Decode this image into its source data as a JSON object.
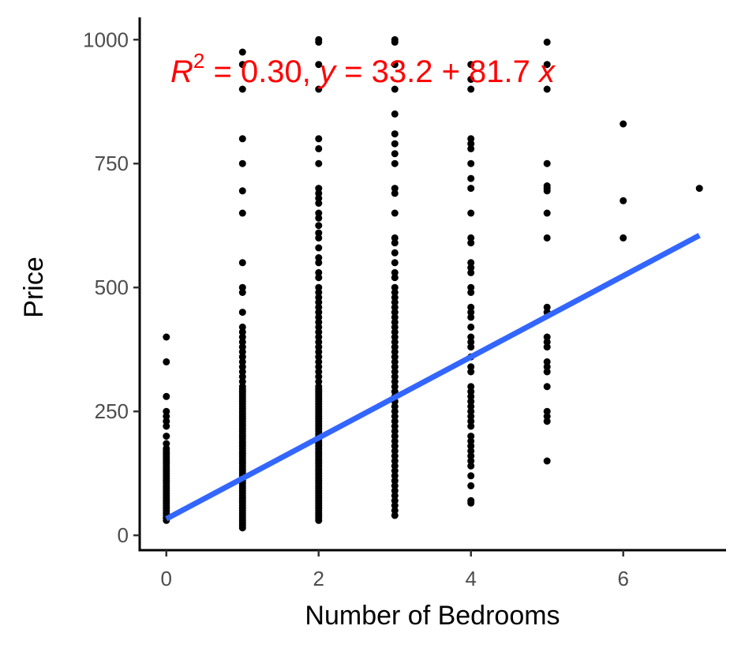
{
  "chart_data": {
    "type": "scatter",
    "xlabel": "Number of Bedrooms",
    "ylabel": "Price",
    "xlim": [
      -0.35,
      7.35
    ],
    "ylim": [
      -30,
      1045
    ],
    "x_ticks": [
      0,
      2,
      4,
      6
    ],
    "y_ticks": [
      0,
      250,
      500,
      750,
      1000
    ],
    "x_tick_labels": [
      "0",
      "2",
      "4",
      "6"
    ],
    "y_tick_labels": [
      "0",
      "250",
      "500",
      "750",
      "1000"
    ],
    "grid": false,
    "legend": "none",
    "point_color": "#000000",
    "points_by_x": [
      {
        "x": 0,
        "y": [
          400,
          350,
          280,
          250,
          240,
          230,
          220,
          200,
          185,
          175,
          170,
          165,
          160,
          155,
          150,
          145,
          140,
          135,
          130,
          125,
          120,
          115,
          110,
          105,
          100,
          95,
          90,
          85,
          80,
          75,
          70,
          65,
          60,
          55,
          50,
          45,
          40,
          35,
          30
        ]
      },
      {
        "x": 1,
        "y": [
          975,
          950,
          900,
          800,
          750,
          695,
          650,
          550,
          500,
          490,
          450,
          420,
          410,
          400,
          390,
          380,
          370,
          360,
          350,
          340,
          330,
          320,
          310,
          300,
          295,
          290,
          285,
          280,
          275,
          270,
          265,
          260,
          255,
          250,
          245,
          240,
          235,
          230,
          225,
          220,
          215,
          210,
          205,
          200,
          195,
          190,
          185,
          180,
          175,
          170,
          165,
          160,
          155,
          150,
          145,
          140,
          135,
          130,
          125,
          120,
          115,
          110,
          105,
          100,
          95,
          90,
          85,
          80,
          75,
          70,
          65,
          60,
          55,
          50,
          45,
          40,
          35,
          30,
          25,
          20,
          15
        ]
      },
      {
        "x": 2,
        "y": [
          1000,
          995,
          950,
          900,
          800,
          780,
          750,
          700,
          690,
          680,
          670,
          650,
          640,
          625,
          610,
          600,
          580,
          560,
          550,
          530,
          520,
          500,
          490,
          480,
          470,
          460,
          450,
          440,
          430,
          420,
          410,
          400,
          390,
          380,
          370,
          360,
          350,
          340,
          330,
          320,
          310,
          300,
          295,
          290,
          285,
          280,
          275,
          270,
          265,
          260,
          255,
          250,
          245,
          240,
          235,
          230,
          225,
          220,
          215,
          210,
          205,
          200,
          195,
          190,
          185,
          180,
          175,
          170,
          165,
          160,
          155,
          150,
          145,
          140,
          135,
          130,
          125,
          120,
          115,
          110,
          105,
          100,
          95,
          90,
          85,
          80,
          75,
          70,
          65,
          60,
          55,
          50,
          45,
          40,
          35,
          30
        ]
      },
      {
        "x": 3,
        "y": [
          1000,
          995,
          950,
          900,
          850,
          810,
          790,
          770,
          750,
          700,
          690,
          650,
          600,
          590,
          570,
          550,
          530,
          520,
          500,
          490,
          480,
          470,
          460,
          450,
          440,
          430,
          420,
          410,
          400,
          390,
          380,
          370,
          360,
          350,
          340,
          330,
          320,
          310,
          300,
          290,
          280,
          270,
          260,
          250,
          240,
          230,
          220,
          210,
          200,
          190,
          180,
          170,
          160,
          150,
          140,
          130,
          120,
          110,
          100,
          90,
          80,
          70,
          60,
          50,
          40
        ]
      },
      {
        "x": 4,
        "y": [
          950,
          920,
          900,
          800,
          790,
          780,
          750,
          720,
          700,
          650,
          600,
          590,
          550,
          540,
          530,
          500,
          490,
          460,
          450,
          440,
          420,
          400,
          390,
          380,
          360,
          340,
          330,
          300,
          290,
          280,
          270,
          260,
          250,
          240,
          230,
          220,
          200,
          190,
          180,
          170,
          160,
          150,
          140,
          120,
          100,
          70,
          65
        ]
      },
      {
        "x": 5,
        "y": [
          995,
          950,
          900,
          750,
          705,
          700,
          695,
          650,
          600,
          460,
          450,
          400,
          390,
          380,
          350,
          340,
          330,
          300,
          250,
          240,
          230,
          150
        ]
      },
      {
        "x": 6,
        "y": [
          830,
          675,
          600
        ]
      },
      {
        "x": 7,
        "y": [
          700
        ]
      }
    ],
    "fit": {
      "type": "linear",
      "intercept": 33.2,
      "slope": 81.7,
      "x_range": [
        0,
        7
      ],
      "color": "#3366FF"
    },
    "annotation": {
      "color": "#FF0000",
      "r2_symbol": "R",
      "r2_power": "2",
      "r2_value_text": " = 0.30, ",
      "y_symbol": "y",
      "equation_rest": " = 33.2 + 81.7 ",
      "x_symbol": "x"
    }
  }
}
